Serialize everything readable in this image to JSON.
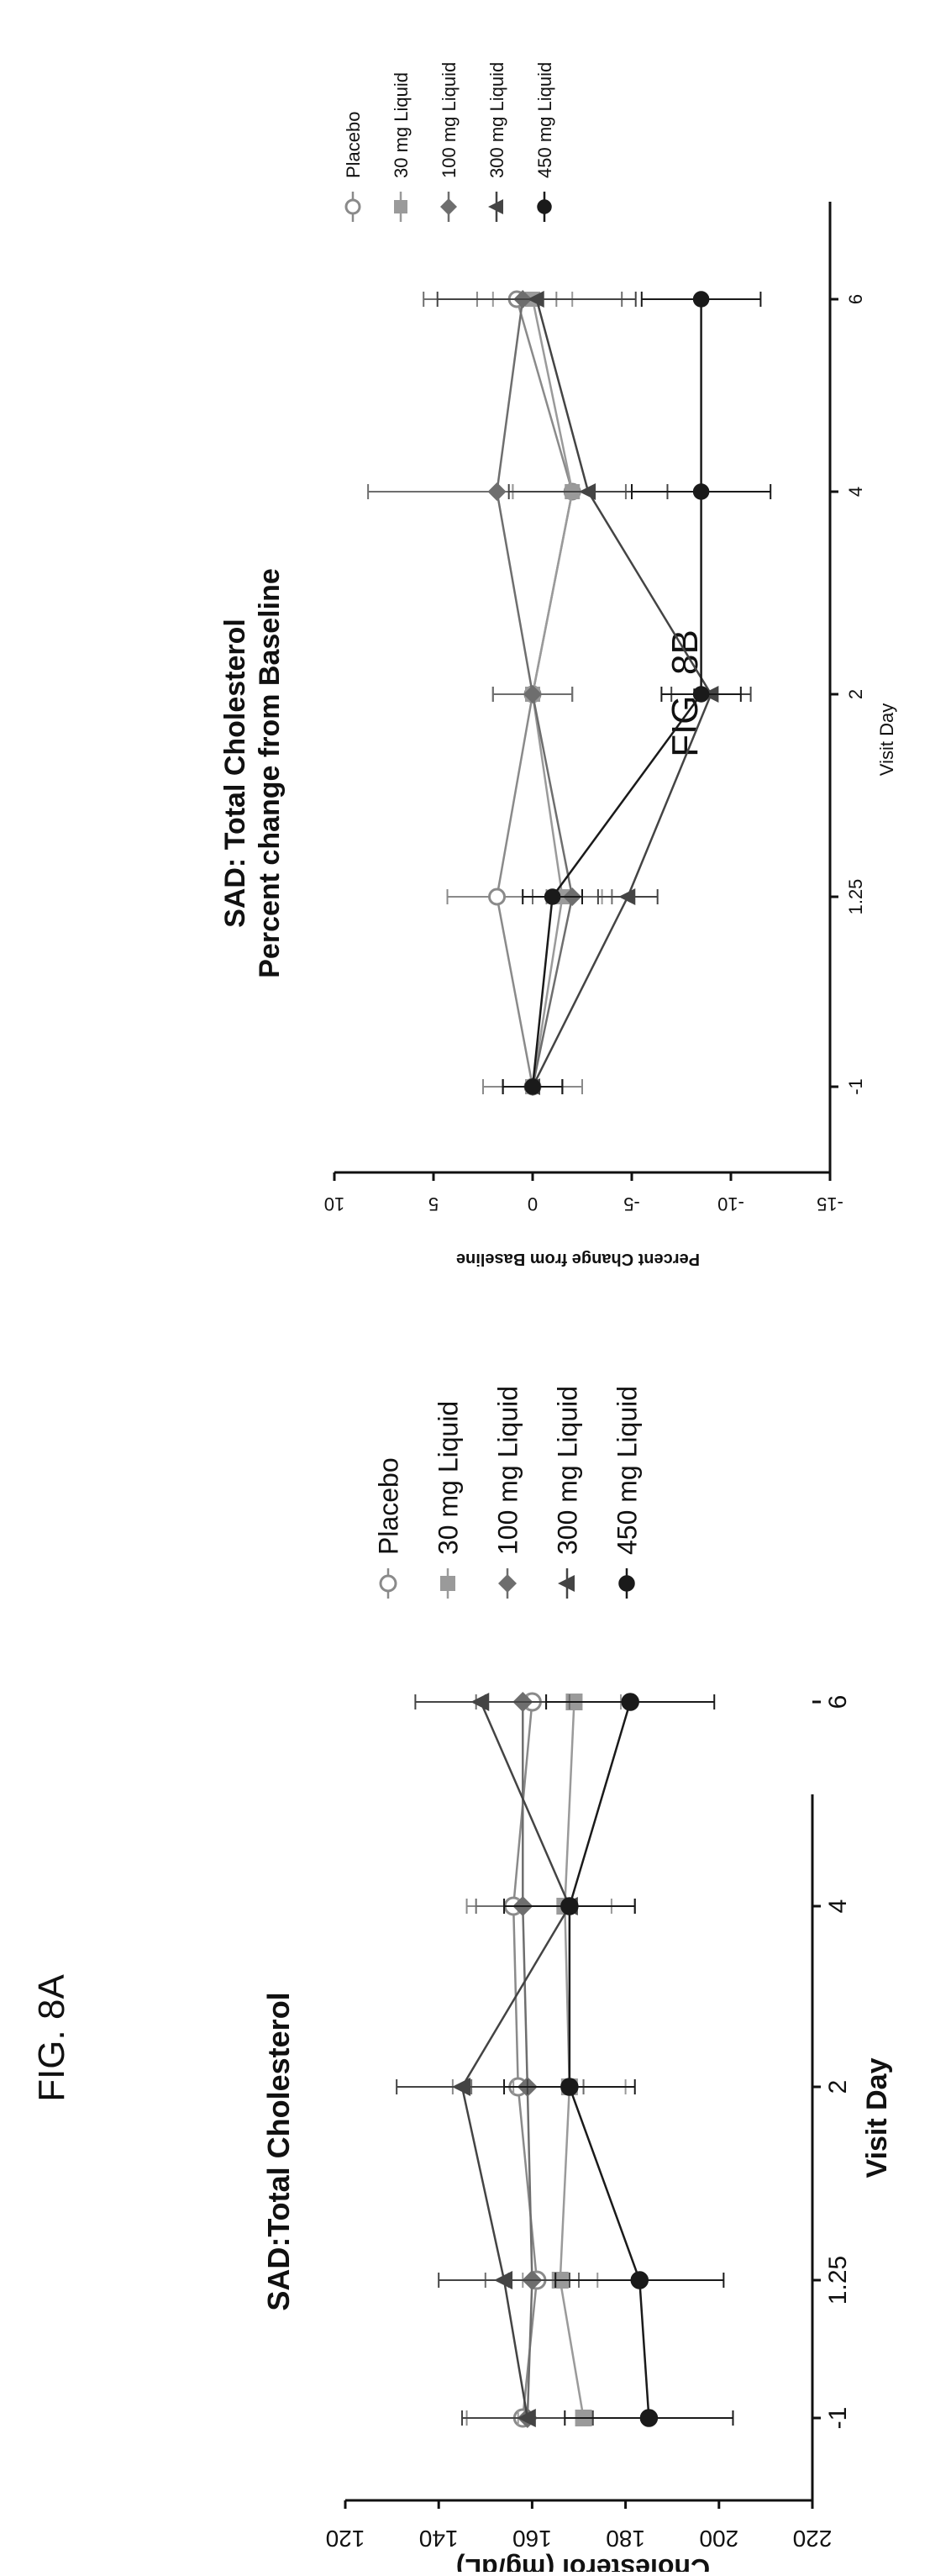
{
  "figures": {
    "fig_a": "FIG. 8A",
    "fig_b": "FIG. 8B"
  },
  "chart_data": [
    {
      "id": "8A",
      "type": "line",
      "title": "SAD:Total Cholesterol",
      "subtitle": "",
      "xlabel": "Visit Day",
      "ylabel": "Cholesterol (mg/dL)",
      "categories": [
        "-1",
        "1.25",
        "2",
        "4",
        "6"
      ],
      "ylim": [
        120,
        220
      ],
      "yticks": [
        120,
        140,
        160,
        180,
        200,
        220
      ],
      "legend_position": "right",
      "grid": false,
      "series": [
        {
          "name": "Placebo",
          "color": "#8a8a8a",
          "marker": "open-circle",
          "values": [
            158,
            161,
            157,
            156,
            160
          ],
          "err": [
            12,
            6,
            14,
            10,
            10
          ]
        },
        {
          "name": "30 mg Liquid",
          "color": "#9a9a9a",
          "marker": "square",
          "values": [
            171,
            166,
            168,
            167,
            169
          ],
          "err": [
            14,
            8,
            12,
            10,
            10
          ]
        },
        {
          "name": "100 mg Liquid",
          "color": "#6e6e6e",
          "marker": "diamond",
          "values": [
            159,
            160,
            159,
            158,
            158
          ],
          "err": [
            14,
            10,
            12,
            10,
            10
          ]
        },
        {
          "name": "300 mg Liquid",
          "color": "#444444",
          "marker": "triangle",
          "values": [
            159,
            154,
            145,
            168,
            149
          ],
          "err": [
            14,
            14,
            14,
            14,
            14
          ]
        },
        {
          "name": "450 mg Liquid",
          "color": "#1a1a1a",
          "marker": "filled-circle",
          "values": [
            185,
            183,
            168,
            168,
            181
          ],
          "err": [
            18,
            18,
            14,
            14,
            18
          ]
        }
      ]
    },
    {
      "id": "8B",
      "type": "line",
      "title": "SAD: Total Cholesterol",
      "subtitle": "Percent change from Baseline",
      "xlabel": "Visit Day",
      "ylabel": "Percent Change from Baseline",
      "categories": [
        "-1",
        "1.25",
        "2",
        "4",
        "6"
      ],
      "ylim": [
        -15,
        10
      ],
      "yticks": [
        10,
        5,
        0,
        -5,
        -10,
        -15
      ],
      "legend_position": "right",
      "grid": false,
      "series": [
        {
          "name": "Placebo",
          "color": "#8a8a8a",
          "marker": "open-circle",
          "values": [
            0,
            1.8,
            0,
            -2,
            0.8
          ],
          "err": [
            2.5,
            2.5,
            2,
            3,
            2
          ]
        },
        {
          "name": "30 mg Liquid",
          "color": "#9a9a9a",
          "marker": "square",
          "values": [
            0,
            -1.5,
            0,
            -2,
            0
          ],
          "err": [
            1.5,
            2,
            2,
            3,
            2
          ]
        },
        {
          "name": "100 mg Liquid",
          "color": "#6e6e6e",
          "marker": "diamond",
          "values": [
            0,
            -2,
            0,
            1.8,
            0.5
          ],
          "err": [
            1.5,
            2,
            2,
            6.5,
            5
          ]
        },
        {
          "name": "300 mg Liquid",
          "color": "#444444",
          "marker": "triangle",
          "values": [
            0,
            -4.8,
            -9,
            -2.8,
            -0.2
          ],
          "err": [
            1.5,
            1.5,
            2,
            4,
            5
          ]
        },
        {
          "name": "450 mg Liquid",
          "color": "#1a1a1a",
          "marker": "filled-circle",
          "values": [
            0,
            -1,
            -8.5,
            -8.5,
            -8.5
          ],
          "err": [
            1.5,
            1.5,
            2,
            3.5,
            3
          ]
        }
      ]
    }
  ]
}
